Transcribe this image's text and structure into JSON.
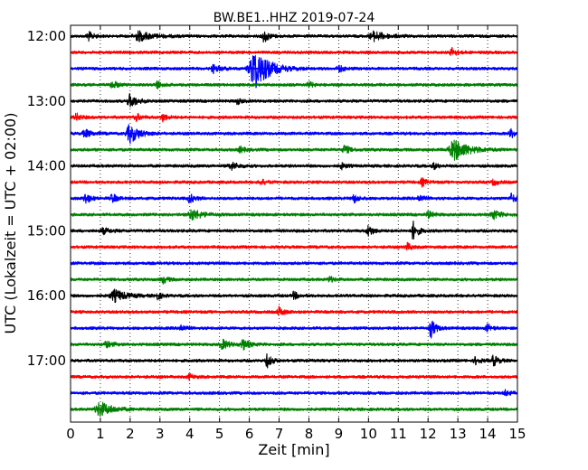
{
  "chart_data": {
    "type": "line",
    "title": "BW.BE1..HHZ 2019-07-24",
    "xlabel": "Zeit  [min]",
    "ylabel": "UTC (Lokalzeit = UTC + 02:00)",
    "xlim": [
      0,
      15
    ],
    "x_ticks": [
      "0",
      "1",
      "2",
      "3",
      "4",
      "5",
      "6",
      "7",
      "8",
      "9",
      "10",
      "11",
      "12",
      "13",
      "14",
      "15"
    ],
    "y_tick_labels": [
      "12:00",
      "13:00",
      "14:00",
      "15:00",
      "16:00",
      "17:00"
    ],
    "grid": "vertical-dotted",
    "trace_colors": [
      "#000000",
      "#ff0000",
      "#0000ff",
      "#008000"
    ],
    "traces": [
      {
        "start": "12:00",
        "color": "#000000",
        "events": [
          [
            0.6,
            0.5,
            0.2
          ],
          [
            2.3,
            0.5,
            0.6
          ],
          [
            6.5,
            0.7,
            0.2
          ],
          [
            10.2,
            0.5,
            0.5
          ]
        ]
      },
      {
        "start": "12:15",
        "color": "#ff0000",
        "events": [
          [
            12.8,
            0.5,
            0.2
          ]
        ]
      },
      {
        "start": "12:30",
        "color": "#0000ff",
        "events": [
          [
            6.2,
            2.2,
            0.6
          ],
          [
            4.8,
            0.4,
            0.3
          ],
          [
            9.0,
            0.4,
            0.2
          ]
        ]
      },
      {
        "start": "12:45",
        "color": "#008000",
        "events": [
          [
            1.4,
            0.5,
            0.2
          ],
          [
            2.9,
            0.4,
            0.2
          ],
          [
            8.0,
            0.3,
            0.2
          ]
        ]
      },
      {
        "start": "13:00",
        "color": "#000000",
        "events": [
          [
            2.0,
            0.7,
            0.3
          ],
          [
            5.6,
            0.3,
            0.2
          ]
        ]
      },
      {
        "start": "13:15",
        "color": "#ff0000",
        "events": [
          [
            0.2,
            0.4,
            0.2
          ],
          [
            2.2,
            0.4,
            0.2
          ],
          [
            3.1,
            0.4,
            0.2
          ]
        ]
      },
      {
        "start": "13:30",
        "color": "#0000ff",
        "events": [
          [
            2.0,
            1.0,
            0.4
          ],
          [
            0.5,
            0.4,
            0.3
          ],
          [
            14.8,
            0.4,
            0.3
          ]
        ]
      },
      {
        "start": "13:45",
        "color": "#008000",
        "events": [
          [
            12.9,
            1.1,
            0.6
          ],
          [
            9.2,
            0.5,
            0.2
          ],
          [
            5.7,
            0.3,
            0.2
          ]
        ]
      },
      {
        "start": "14:00",
        "color": "#000000",
        "events": [
          [
            5.4,
            0.4,
            0.3
          ],
          [
            9.1,
            0.3,
            0.2
          ],
          [
            12.2,
            0.3,
            0.2
          ]
        ]
      },
      {
        "start": "14:15",
        "color": "#ff0000",
        "events": [
          [
            11.8,
            0.4,
            0.2
          ],
          [
            6.4,
            0.3,
            0.2
          ],
          [
            14.2,
            0.3,
            0.2
          ]
        ]
      },
      {
        "start": "14:30",
        "color": "#0000ff",
        "events": [
          [
            0.5,
            0.6,
            0.2
          ],
          [
            1.4,
            0.5,
            0.2
          ],
          [
            4.0,
            0.5,
            0.2
          ],
          [
            9.5,
            0.5,
            0.2
          ],
          [
            11.7,
            0.4,
            0.2
          ],
          [
            14.8,
            0.5,
            0.2
          ]
        ]
      },
      {
        "start": "14:45",
        "color": "#008000",
        "events": [
          [
            4.1,
            0.6,
            0.4
          ],
          [
            12.0,
            0.4,
            0.2
          ],
          [
            14.2,
            0.5,
            0.3
          ]
        ]
      },
      {
        "start": "15:00",
        "color": "#000000",
        "events": [
          [
            11.5,
            1.0,
            0.2
          ],
          [
            10.0,
            0.6,
            0.2
          ],
          [
            1.1,
            0.3,
            0.3
          ]
        ]
      },
      {
        "start": "15:15",
        "color": "#ff0000",
        "events": [
          [
            11.3,
            0.4,
            0.2
          ]
        ]
      },
      {
        "start": "15:30",
        "color": "#0000ff",
        "events": []
      },
      {
        "start": "15:45",
        "color": "#008000",
        "events": [
          [
            3.1,
            0.4,
            0.2
          ],
          [
            8.7,
            0.3,
            0.2
          ]
        ]
      },
      {
        "start": "16:00",
        "color": "#000000",
        "events": [
          [
            1.5,
            0.6,
            0.5
          ],
          [
            2.9,
            0.4,
            0.2
          ],
          [
            7.5,
            0.4,
            0.2
          ]
        ]
      },
      {
        "start": "16:15",
        "color": "#ff0000",
        "events": [
          [
            7.0,
            0.5,
            0.2
          ]
        ]
      },
      {
        "start": "16:30",
        "color": "#0000ff",
        "events": [
          [
            12.1,
            1.0,
            0.2
          ],
          [
            3.7,
            0.4,
            0.2
          ],
          [
            14.0,
            0.4,
            0.2
          ]
        ]
      },
      {
        "start": "16:45",
        "color": "#008000",
        "events": [
          [
            5.1,
            0.5,
            0.3
          ],
          [
            5.8,
            0.5,
            0.3
          ],
          [
            1.2,
            0.3,
            0.3
          ]
        ]
      },
      {
        "start": "17:00",
        "color": "#000000",
        "events": [
          [
            6.6,
            0.7,
            0.2
          ],
          [
            13.6,
            0.4,
            0.2
          ],
          [
            14.2,
            0.6,
            0.2
          ]
        ]
      },
      {
        "start": "17:15",
        "color": "#ff0000",
        "events": [
          [
            4.0,
            0.3,
            0.2
          ]
        ]
      },
      {
        "start": "17:30",
        "color": "#0000ff",
        "events": [
          [
            14.6,
            0.3,
            0.2
          ]
        ]
      },
      {
        "start": "17:45",
        "color": "#008000",
        "events": [
          [
            1.0,
            0.8,
            0.5
          ]
        ]
      }
    ]
  }
}
